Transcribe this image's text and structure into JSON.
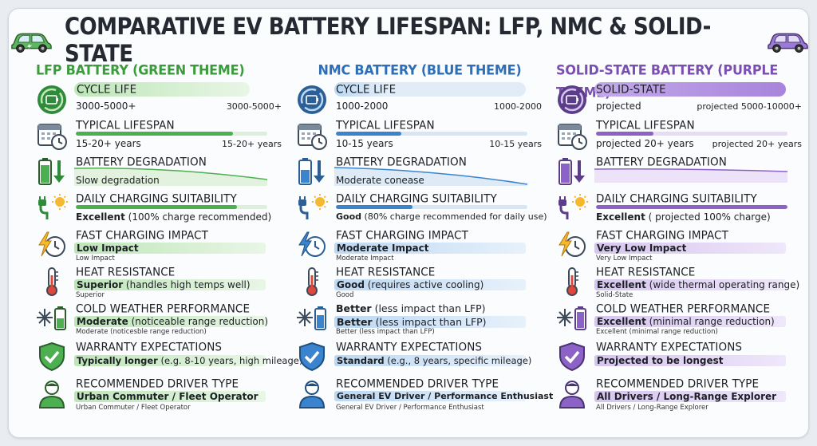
{
  "title": "COMPARATIVE EV BATTERY LIFESPAN: LFP, NMC & SOLID-STATE",
  "icons": {
    "car_left": "green-ev-car-icon",
    "car_right": "purple-ev-car-icon",
    "rows": [
      "battery-cycle-icon",
      "calendar-clock-icon",
      "battery-degradation-icon",
      "plug-sun-icon",
      "lightning-clock-icon",
      "thermometer-icon",
      "snowflake-battery-icon",
      "shield-check-icon",
      "driver-person-icon"
    ]
  },
  "colors": {
    "lfp": "#4caf50",
    "nmc": "#3a83cf",
    "solid_state": "#8d62c7"
  },
  "columns": [
    {
      "key": "lfp",
      "title": "LFP BATTERY (GREEN THEME)",
      "cycle_label": "CYCLE LIFE",
      "cycle_value": "3000-5000+",
      "cycle_right": "3000-5000+",
      "cycle_fill": 0.72,
      "lifespan_label": "TYPICAL LIFESPAN",
      "lifespan_value": "15-20+ years",
      "lifespan_right": "15-20+ years",
      "lifespan_fill": 0.82,
      "degradation_label": "BATTERY DEGRADATION",
      "degradation_value": "Slow degradation",
      "charging_label": "DAILY CHARGING SUITABILITY",
      "charging_value": "Excellent",
      "charging_detail": " (100% charge recommended)",
      "charging_fill": 0.84,
      "fast_label": "FAST CHARGING IMPACT",
      "fast_value": "Low Impact",
      "fast_detail": "",
      "fast_sub": "Low Impact",
      "heat_label": "HEAT RESISTANCE",
      "heat_value": "Superior",
      "heat_detail": " (handles high temps well)",
      "heat_sub": "Superior",
      "cold_label": "COLD WEATHER PERFORMANCE",
      "cold_value": "Moderate",
      "cold_detail": " (noticeable range reduction)",
      "cold_sub": "Moderate (noticesble range reduction)",
      "warranty_label": "WARRANTY EXPECTATIONS",
      "warranty_value": "Typically longer",
      "warranty_detail": " (e.g. 8-10 years, high mileage)",
      "driver_label": "RECOMMENDED DRIVER TYPE",
      "driver_value": "Urban Commuter / Fleet Operator",
      "driver_sub": "Urban Commuter / Fleet Operator"
    },
    {
      "key": "nmc",
      "title": "NMC BATTERY (BLUE THEME)",
      "cycle_label": "CYCLE LIFE",
      "cycle_value": "1000-2000",
      "cycle_right": "1000-2000",
      "cycle_fill": 0.3,
      "lifespan_label": "TYPICAL LIFESPAN",
      "lifespan_value": "10-15 years",
      "lifespan_right": "10-15 years",
      "lifespan_fill": 0.34,
      "degradation_label": "BATTERY DEGRADATION",
      "degradation_value": "Moderate conease",
      "charging_label": "DAILY CHARGING SUITABILITY",
      "charging_value": "Good",
      "charging_detail": " (80% charge recommended for daily use)",
      "charging_fill": 0.4,
      "fast_label": "FAST CHARGING IMPACT",
      "fast_value": "Moderate Impact",
      "fast_detail": "",
      "fast_sub": "Moderate Impact",
      "heat_label": "HEAT RESISTANCE",
      "heat_value": "Good",
      "heat_detail": " (requires active cooling)",
      "heat_sub": "Good",
      "cold_label": "",
      "cold_value": "Better",
      "cold_detail": " (less impact than LFP)",
      "cold_value_2": "Better",
      "cold_detail_2": " (less impact than LFP)",
      "cold_sub": "Better (less impact than LFP)",
      "warranty_label": "WARRANTY EXPECTATIONS",
      "warranty_value": "Standard",
      "warranty_detail": " (e.g., 8 years, specific mileage)",
      "driver_label": "RECOMMENDED DRIVER TYPE",
      "driver_value": "General EV Driver / Performance Enthusiast",
      "driver_sub": "General EV Driver / Performance Enthusiast"
    },
    {
      "key": "solid_state",
      "title": "SOLID-STATE BATTERY (PURPLE THEME)",
      "cycle_label": "SOLID-STATE",
      "cycle_value": "projected",
      "cycle_right": "projected 5000-10000+",
      "cycle_fill": 1.0,
      "lifespan_label": "TYPICAL LIFESPAN",
      "lifespan_value": "projected 20+ years",
      "lifespan_right": "projected 20+ years",
      "lifespan_fill": 0.3,
      "degradation_label": "BATTERY DEGRADATION",
      "degradation_value": "",
      "charging_label": "DAILY CHARGING SUITABILITY",
      "charging_value": "Excellent",
      "charging_detail": " ( projected 100% charge)",
      "charging_fill": 1.0,
      "fast_label": "FAST CHARGING IMPACT",
      "fast_value": "Very Low Impact",
      "fast_detail": "",
      "fast_sub": "Very Low Impact",
      "heat_label": "HEAT RESISTANCE",
      "heat_value": "Excellent",
      "heat_detail": " (wide thermal operating range)",
      "heat_sub": "Solid-State",
      "cold_label": "COLD WEATHER PERFORMANCE",
      "cold_value": "Excellent",
      "cold_detail": " (minimal range reduction)",
      "cold_sub": "Excellent (minimal range reduction)",
      "warranty_label": "WARRANTY EXPECTATIONS",
      "warranty_value": "Projected to be longest",
      "warranty_detail": "",
      "driver_label": "RECOMMENDED DRIVER TYPE",
      "driver_value": "All Drivers / Long-Range Explorer",
      "driver_sub": "All Drivers / Long-Range Explorer"
    }
  ]
}
